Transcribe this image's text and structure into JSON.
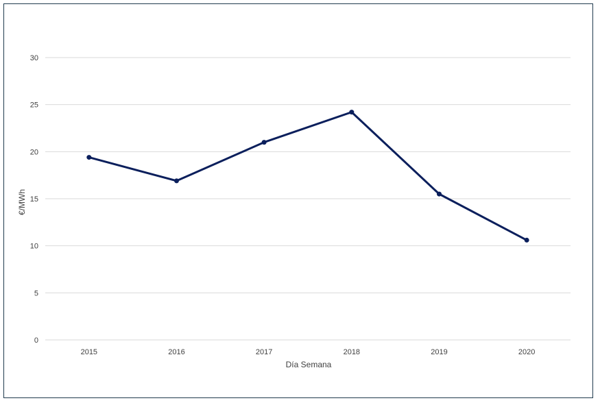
{
  "chart_data": {
    "type": "line",
    "title": "",
    "xlabel": "Día Semana",
    "ylabel": "€/MWh",
    "categories": [
      "2015",
      "2016",
      "2017",
      "2018",
      "2019",
      "2020"
    ],
    "series": [
      {
        "values": [
          19.4,
          16.9,
          21.0,
          24.2,
          15.5,
          10.6
        ],
        "color": "#0b1f5c"
      }
    ],
    "ylim": [
      0,
      30
    ],
    "yticks": [
      0,
      5,
      10,
      15,
      20,
      25,
      30
    ],
    "grid": true,
    "legend": "none",
    "gridline_color": "#d9d9d9",
    "frame_color": "#1f3a4d"
  }
}
